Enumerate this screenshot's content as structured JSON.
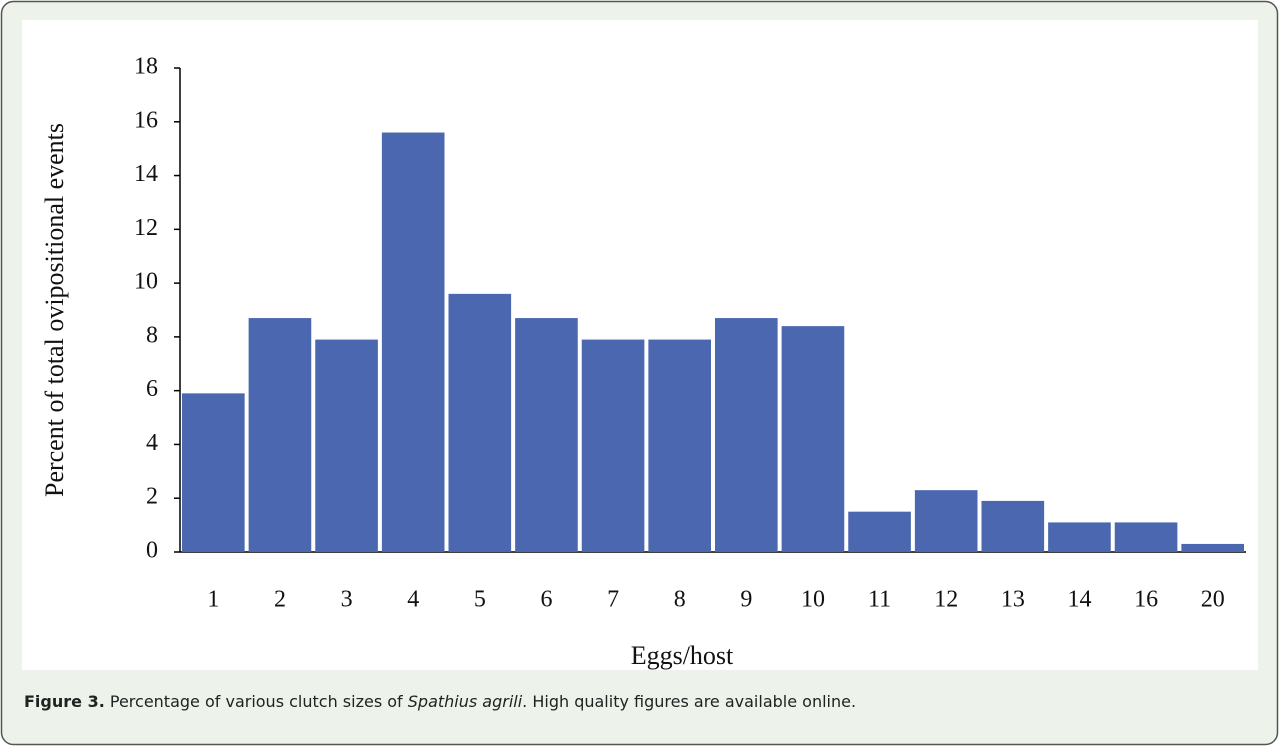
{
  "chart_data": {
    "type": "bar",
    "categories": [
      "1",
      "2",
      "3",
      "4",
      "5",
      "6",
      "7",
      "8",
      "9",
      "10",
      "11",
      "12",
      "13",
      "14",
      "16",
      "20"
    ],
    "values": [
      5.9,
      8.7,
      7.9,
      15.6,
      9.6,
      8.7,
      7.9,
      7.9,
      8.7,
      8.4,
      1.5,
      2.3,
      1.9,
      1.1,
      1.1,
      0.3
    ],
    "color": "#4a67b0",
    "ylim": [
      0,
      18
    ],
    "yticks": [
      0,
      2,
      4,
      6,
      8,
      10,
      12,
      14,
      16,
      18
    ],
    "x_label": "Eggs/host",
    "y_label": "Percent of total ovipositional events"
  },
  "caption": {
    "label": "Figure 3.",
    "text_before": " Percentage of various clutch sizes of ",
    "species": "Spathius agrili",
    "text_after": ". High quality figures are available online."
  }
}
